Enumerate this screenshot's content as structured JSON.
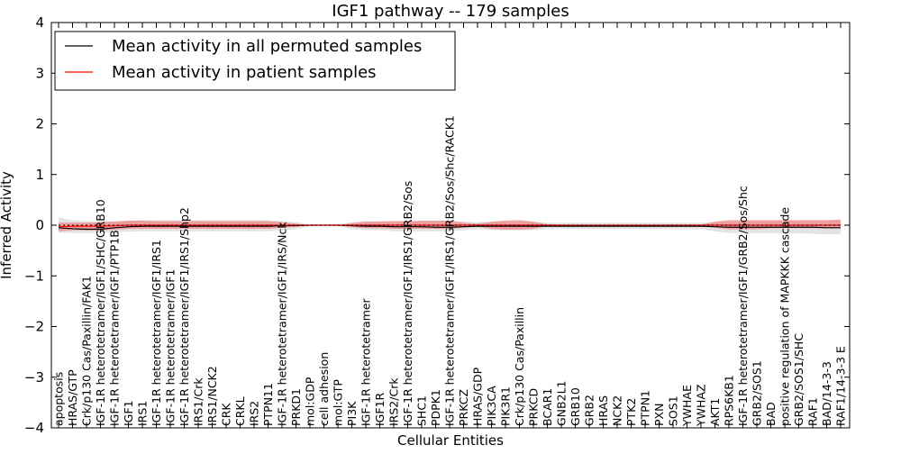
{
  "chart_data": {
    "type": "line",
    "title": "IGF1 pathway -- 179 samples",
    "xlabel": "Cellular Entities",
    "ylabel": "Inferred Activity",
    "ylim": [
      -4,
      4
    ],
    "yticks": [
      4,
      3,
      2,
      1,
      0,
      -1,
      -2,
      -3,
      -4
    ],
    "ytick_labels": [
      "4",
      "3",
      "2",
      "1",
      "0",
      "−1",
      "−2",
      "−3",
      "−4"
    ],
    "legend": {
      "placement": "top-left",
      "entries": [
        {
          "name": "Mean activity in all permuted samples",
          "color": "#000000"
        },
        {
          "name": "Mean activity in patient samples",
          "color": "#ff0000"
        }
      ]
    },
    "categories": [
      "apoptosis",
      "HRAS/GTP",
      "Crk/p130 Cas/Paxillin/FAK1",
      "IGF-1R heterotetramer/IGF1/SHC/GRB10",
      "IGF-1R heterotetramer/IGF1/PTP1B",
      "IGF1",
      "IRS1",
      "IGF-1R heterotetramer/IGF1/IRS1",
      "IGF-1R heterotetramer/IGF1",
      "IGF-1R heterotetramer/IGF1/IRS1/Shp2",
      "IRS1/Crk",
      "IRS1/NCK2",
      "CRK",
      "CRKL",
      "IRS2",
      "PTPN11",
      "IGF-1R heterotetramer/IGF1/IRS/Nck",
      "PRKD1",
      "mol:GDP",
      "cell adhesion",
      "mol:GTP",
      "PI3K",
      "IGF-1R heterotetramer",
      "IGF1R",
      "IRS2/Crk",
      "IGF-1R heterotetramer/IGF1/IRS1/GRB2/Sos",
      "SHC1",
      "PDPK1",
      "IGF-1R heterotetramer/IGF1/IRS1/GRB2/Sos/Shc/RACK1",
      "PRKCZ",
      "HRAS/GDP",
      "PIK3CA",
      "PIK3R1",
      "Crk/p130 Cas/Paxillin",
      "PRKCD",
      "BCAR1",
      "GNB2L1",
      "GRB10",
      "GRB2",
      "HRAS",
      "NCK2",
      "PTK2",
      "PTPN1",
      "PXN",
      "SOS1",
      "YWHAE",
      "YWHAZ",
      "AKT1",
      "RPS6KB1",
      "IGF-1R heterotetramer/IGF1/GRB2/Sos/Shc",
      "GRB2/SOS1",
      "BAD",
      "positive regulation of MAPKKK cascade",
      "GRB2/SOS1/SHC",
      "RAF1",
      "BAD/14-3-3",
      "RAF1/14-3-3 E"
    ],
    "series": [
      {
        "name": "Mean activity in all permuted samples",
        "color": "#000000",
        "values": [
          -0.05,
          -0.07,
          -0.08,
          -0.08,
          -0.05,
          -0.03,
          -0.02,
          -0.02,
          -0.02,
          -0.02,
          -0.02,
          -0.02,
          -0.02,
          -0.02,
          -0.02,
          -0.02,
          -0.01,
          -0.01,
          0.0,
          0.0,
          0.0,
          -0.01,
          -0.02,
          -0.02,
          -0.03,
          -0.03,
          -0.03,
          -0.04,
          -0.04,
          -0.03,
          -0.02,
          -0.02,
          -0.02,
          -0.02,
          -0.02,
          -0.02,
          -0.02,
          -0.02,
          -0.02,
          -0.02,
          -0.02,
          -0.02,
          -0.02,
          -0.02,
          -0.02,
          -0.02,
          -0.02,
          -0.03,
          -0.04,
          -0.04,
          -0.04,
          -0.04,
          -0.04,
          -0.04,
          -0.04,
          -0.05,
          -0.05
        ],
        "band_lower": [
          -0.15,
          -0.15,
          -0.15,
          -0.15,
          -0.14,
          -0.13,
          -0.12,
          -0.12,
          -0.12,
          -0.12,
          -0.12,
          -0.12,
          -0.12,
          -0.12,
          -0.12,
          -0.12,
          -0.1,
          -0.08,
          -0.02,
          0.0,
          -0.02,
          -0.08,
          -0.1,
          -0.1,
          -0.12,
          -0.12,
          -0.12,
          -0.12,
          -0.12,
          -0.1,
          -0.08,
          -0.1,
          -0.1,
          -0.1,
          -0.1,
          -0.08,
          -0.07,
          -0.07,
          -0.07,
          -0.07,
          -0.07,
          -0.07,
          -0.07,
          -0.07,
          -0.08,
          -0.08,
          -0.08,
          -0.12,
          -0.15,
          -0.15,
          -0.15,
          -0.15,
          -0.15,
          -0.16,
          -0.17,
          -0.18,
          -0.18
        ],
        "band_upper": [
          0.15,
          0.1,
          0.08,
          0.07,
          0.08,
          0.09,
          0.1,
          0.1,
          0.1,
          0.1,
          0.1,
          0.1,
          0.1,
          0.1,
          0.1,
          0.1,
          0.08,
          0.06,
          0.02,
          0.0,
          0.02,
          0.06,
          0.08,
          0.08,
          0.08,
          0.08,
          0.08,
          0.08,
          0.08,
          0.07,
          0.06,
          0.06,
          0.06,
          0.06,
          0.06,
          0.05,
          0.05,
          0.05,
          0.05,
          0.05,
          0.05,
          0.05,
          0.05,
          0.05,
          0.05,
          0.05,
          0.05,
          0.06,
          0.06,
          0.07,
          0.07,
          0.08,
          0.08,
          0.08,
          0.09,
          0.09,
          0.1
        ]
      },
      {
        "name": "Mean activity in patient samples",
        "color": "#ff0000",
        "values": [
          -0.03,
          -0.02,
          -0.02,
          -0.02,
          -0.01,
          0.0,
          0.0,
          0.0,
          0.0,
          0.0,
          0.0,
          0.0,
          0.0,
          0.0,
          0.0,
          0.0,
          0.0,
          0.0,
          0.0,
          0.0,
          0.0,
          0.0,
          0.0,
          0.0,
          0.0,
          0.0,
          0.0,
          0.0,
          0.0,
          0.0,
          0.0,
          0.0,
          0.0,
          0.0,
          0.0,
          0.0,
          0.0,
          0.0,
          0.0,
          0.0,
          0.0,
          0.0,
          0.0,
          0.0,
          0.0,
          0.0,
          0.0,
          0.0,
          0.0,
          0.0,
          0.0,
          0.0,
          0.0,
          0.0,
          0.0,
          0.0,
          0.0
        ],
        "band_lower": [
          -0.12,
          -0.1,
          -0.1,
          -0.1,
          -0.09,
          -0.07,
          -0.07,
          -0.07,
          -0.07,
          -0.07,
          -0.07,
          -0.07,
          -0.07,
          -0.07,
          -0.07,
          -0.07,
          -0.05,
          -0.03,
          0.0,
          0.0,
          0.0,
          -0.04,
          -0.06,
          -0.06,
          -0.07,
          -0.07,
          -0.07,
          -0.07,
          -0.07,
          -0.05,
          -0.03,
          -0.07,
          -0.09,
          -0.09,
          -0.07,
          -0.02,
          -0.01,
          -0.01,
          -0.01,
          -0.01,
          -0.01,
          -0.01,
          -0.01,
          -0.01,
          -0.01,
          -0.01,
          -0.01,
          -0.05,
          -0.08,
          -0.08,
          -0.08,
          -0.06,
          -0.06,
          -0.06,
          -0.06,
          -0.06,
          -0.06
        ],
        "band_upper": [
          0.05,
          0.05,
          0.05,
          0.06,
          0.07,
          0.09,
          0.09,
          0.08,
          0.08,
          0.08,
          0.08,
          0.08,
          0.08,
          0.08,
          0.08,
          0.08,
          0.06,
          0.03,
          0.0,
          0.0,
          0.0,
          0.04,
          0.07,
          0.07,
          0.08,
          0.08,
          0.09,
          0.09,
          0.09,
          0.05,
          0.03,
          0.07,
          0.09,
          0.1,
          0.07,
          0.02,
          0.01,
          0.01,
          0.01,
          0.01,
          0.01,
          0.01,
          0.01,
          0.01,
          0.01,
          0.01,
          0.01,
          0.07,
          0.1,
          0.1,
          0.1,
          0.1,
          0.1,
          0.1,
          0.1,
          0.1,
          0.11
        ]
      }
    ],
    "colors": {
      "permuted_band": "#d9d9d9",
      "patient_band": "#f08080"
    }
  }
}
